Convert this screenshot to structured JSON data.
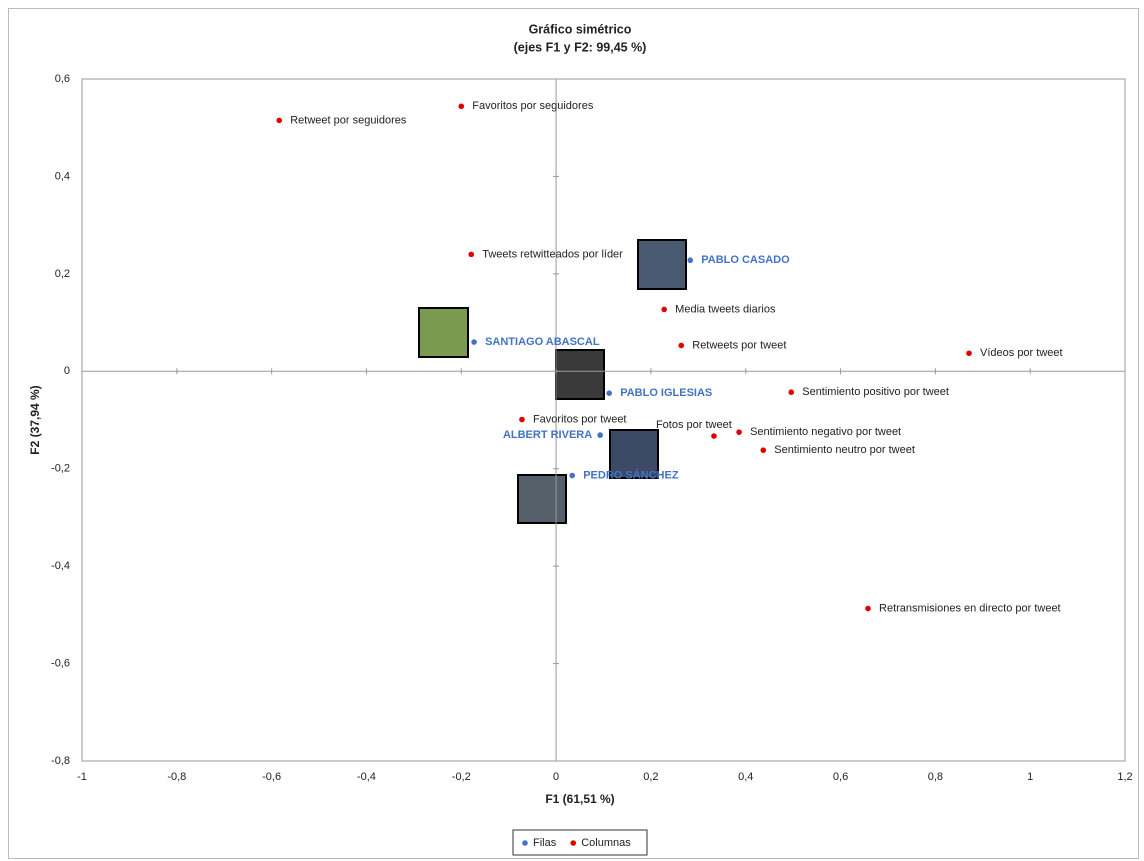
{
  "chart_data": {
    "type": "scatter",
    "title": "Gráfico simétrico",
    "subtitle": "(ejes F1 y F2: 99,45 %)",
    "x_label": "F1 (61,51 %)",
    "y_label": "F2 (37,94 %)",
    "xlim": [
      -1,
      1.2
    ],
    "ylim": [
      -0.8,
      0.6
    ],
    "xticks": [
      -1,
      {
        "value": -0.8,
        "label": "-0,8"
      },
      {
        "value": -0.6,
        "label": "-0,6"
      },
      {
        "value": -0.4,
        "label": "-0,4"
      },
      {
        "value": -0.2,
        "label": "-0,2"
      },
      0,
      {
        "value": 0.2,
        "label": "0,2"
      },
      {
        "value": 0.4,
        "label": "0,4"
      },
      {
        "value": 0.6,
        "label": "0,6"
      },
      {
        "value": 0.8,
        "label": "0,8"
      },
      1,
      {
        "value": 1.2,
        "label": "1,2"
      }
    ],
    "yticks": [
      {
        "value": -0.8,
        "label": "-0,8"
      },
      {
        "value": -0.6,
        "label": "-0,6"
      },
      {
        "value": -0.4,
        "label": "-0,4"
      },
      {
        "value": -0.2,
        "label": "-0,2"
      },
      0,
      {
        "value": 0.2,
        "label": "0,2"
      },
      {
        "value": 0.4,
        "label": "0,4"
      },
      {
        "value": 0.6,
        "label": "0,6"
      }
    ],
    "grid": false,
    "legend": "bottom",
    "series": [
      {
        "name": "Filas",
        "color": "#4472c4",
        "labels": [
          "PABLO CASADO",
          "SANTIAGO ABASCAL",
          "PABLO IGLESIAS",
          "ALBERT RIVERA",
          "PEDRO SÁNCHEZ"
        ],
        "x": [
          0.283,
          -0.173,
          0.112,
          0.093,
          0.034
        ],
        "values": [
          0.228,
          0.06,
          -0.045,
          -0.131,
          -0.214
        ]
      },
      {
        "name": "Columnas",
        "color": "#e00000",
        "labels": [
          "Retweet por seguidores",
          "Favoritos por seguidores",
          "Tweets retwitteados por líder",
          "Media tweets diarios",
          "Retweets por tweet",
          "Vídeos por tweet",
          "Sentimiento positivo por tweet",
          "Favoritos por tweet",
          "Fotos por tweet",
          "Sentimiento negativo por tweet",
          "Sentimiento neutro por tweet",
          "Retransmisiones en directo por tweet"
        ],
        "x": [
          -0.584,
          -0.2,
          -0.179,
          0.228,
          0.264,
          0.871,
          0.496,
          -0.072,
          0.333,
          0.386,
          0.437,
          0.658
        ],
        "values": [
          0.515,
          0.544,
          0.24,
          0.127,
          0.053,
          0.037,
          -0.043,
          -0.099,
          -0.133,
          -0.125,
          -0.162,
          -0.487
        ]
      }
    ]
  }
}
